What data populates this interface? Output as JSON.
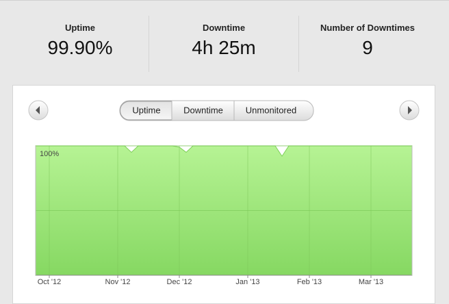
{
  "stats": [
    {
      "label": "Uptime",
      "value": "99.90%"
    },
    {
      "label": "Downtime",
      "value": "4h 25m"
    },
    {
      "label": "Number of Downtimes",
      "value": "9"
    }
  ],
  "tabs": [
    "Uptime",
    "Downtime",
    "Unmonitored"
  ],
  "chart_data": {
    "type": "area",
    "categories": [
      null,
      null,
      "Oct '12",
      null,
      null,
      null,
      null,
      null,
      null,
      null,
      null,
      null,
      "Nov '12",
      null,
      null,
      null,
      null,
      null,
      null,
      null,
      null,
      "Dec '12",
      null,
      null,
      null,
      null,
      null,
      null,
      null,
      null,
      null,
      "Jan '13",
      null,
      null,
      null,
      null,
      null,
      null,
      null,
      null,
      "Feb '13",
      null,
      null,
      null,
      null,
      null,
      null,
      null,
      null,
      "Mar '13",
      null,
      null,
      null,
      null,
      null,
      null
    ],
    "values": [
      100,
      100,
      100,
      100,
      100,
      100,
      100,
      100,
      100,
      100,
      100,
      100,
      100,
      100,
      95,
      100,
      100,
      100,
      100,
      100,
      100,
      99,
      95,
      100,
      100,
      100,
      100,
      100,
      100,
      100,
      100,
      100,
      100,
      100,
      100,
      100,
      92,
      100,
      100,
      100,
      100,
      100,
      100,
      100,
      100,
      100,
      100,
      100,
      100,
      100,
      100,
      100,
      100,
      100,
      100,
      100
    ],
    "color": "#7fcf5a",
    "ylim": [
      0,
      100
    ],
    "yticks": [
      {
        "value": 100,
        "label": "100%"
      }
    ],
    "grid": true
  }
}
